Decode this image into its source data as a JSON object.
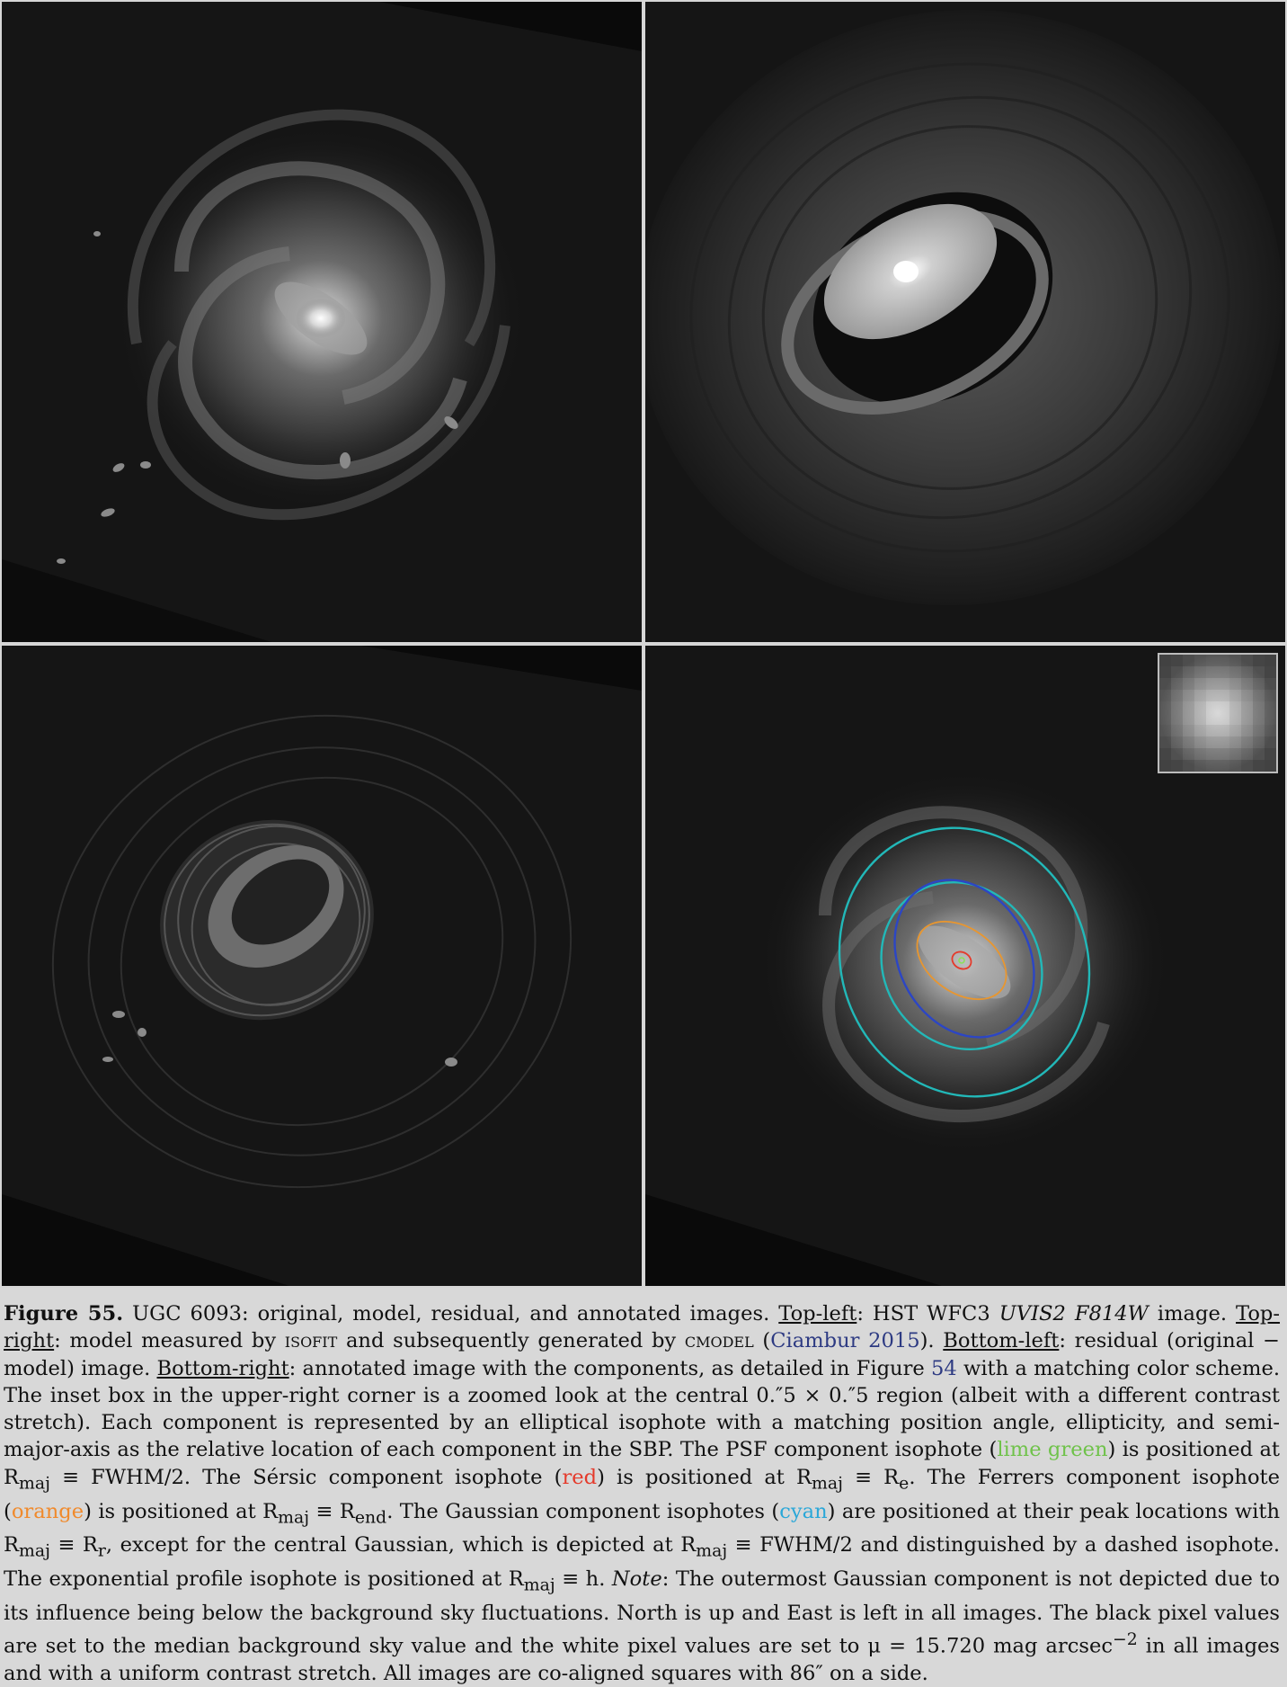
{
  "figure": {
    "label": "Figure 55.",
    "title": "UGC 6093: original, model, residual, and annotated images.",
    "tl_label": "Top-left",
    "tl_text": ": HST WFC3 ",
    "tl_filter": "UVIS2 F814W",
    "tl_end": " image.",
    "tr_label": "Top-right",
    "tr_text1": ": model measured by ",
    "tr_isofit": "isofit",
    "tr_text2": " and subsequently generated by ",
    "tr_cmodel": "cmodel",
    "tr_open": " (",
    "tr_cite": "Ciambur 2015",
    "tr_close": ").",
    "bl_label": "Bottom-left",
    "bl_text": ": residual (original − model) image.",
    "br_label": "Bottom-right",
    "br_text1": ": annotated image with the components, as detailed in Figure ",
    "br_figref": "54",
    "br_text2": " with a matching color scheme. The inset box in the upper-right corner is a zoomed look at the central 0.″5 × 0.″5 region (albeit with a different contrast stretch). Each component is represented by an elliptical isophote with a matching position angle, ellipticity, and semi-major-axis as the relative location of each component in the SBP. The PSF component isophote (",
    "psf_color": "lime green",
    "psf_text": ") is positioned at R",
    "maj": "maj",
    "psf_eq": " ≡ FWHM/2. The Sérsic component isophote (",
    "sersic_color": "red",
    "sersic_text": ") is positioned at R",
    "sersic_eq": " ≡ R",
    "sersic_sub": "e",
    "ferrers_pre": ". The Ferrers component isophote (",
    "ferrers_color": "orange",
    "ferrers_text": ") is positioned at R",
    "ferrers_eq": " ≡ R",
    "ferrers_sub": "end",
    "gauss_pre": ". The Gaussian component isophotes (",
    "gauss_color": "cyan",
    "gauss_text": ") are positioned at their peak locations with R",
    "gauss_eq": " ≡ R",
    "gauss_sub": "r",
    "gauss_text2": ", except for the central Gaussian, which is depicted at R",
    "gauss_eq2": " ≡ FWHM/2 and distinguished by a dashed isophote. The exponential profile isophote is positioned at R",
    "exp_eq": " ≡ h.",
    "note_label": "Note",
    "note_text": ": The outermost Gaussian component is not depicted due to its influence being below the background sky fluctuations. North is up and East is left in all images. The black pixel values are set to the median background sky value and the white pixel values are set to μ = 15.720 mag arcsec",
    "note_exp": "−2",
    "note_text2": " in all images and with a uniform contrast stretch. All images are co-aligned squares with 86″ on a side."
  },
  "colors": {
    "psf": "#8be05a",
    "sersic": "#e53a2b",
    "ferrers": "#e8962f",
    "gaussian": "#22b8b8",
    "exponential": "#2c46c4"
  }
}
